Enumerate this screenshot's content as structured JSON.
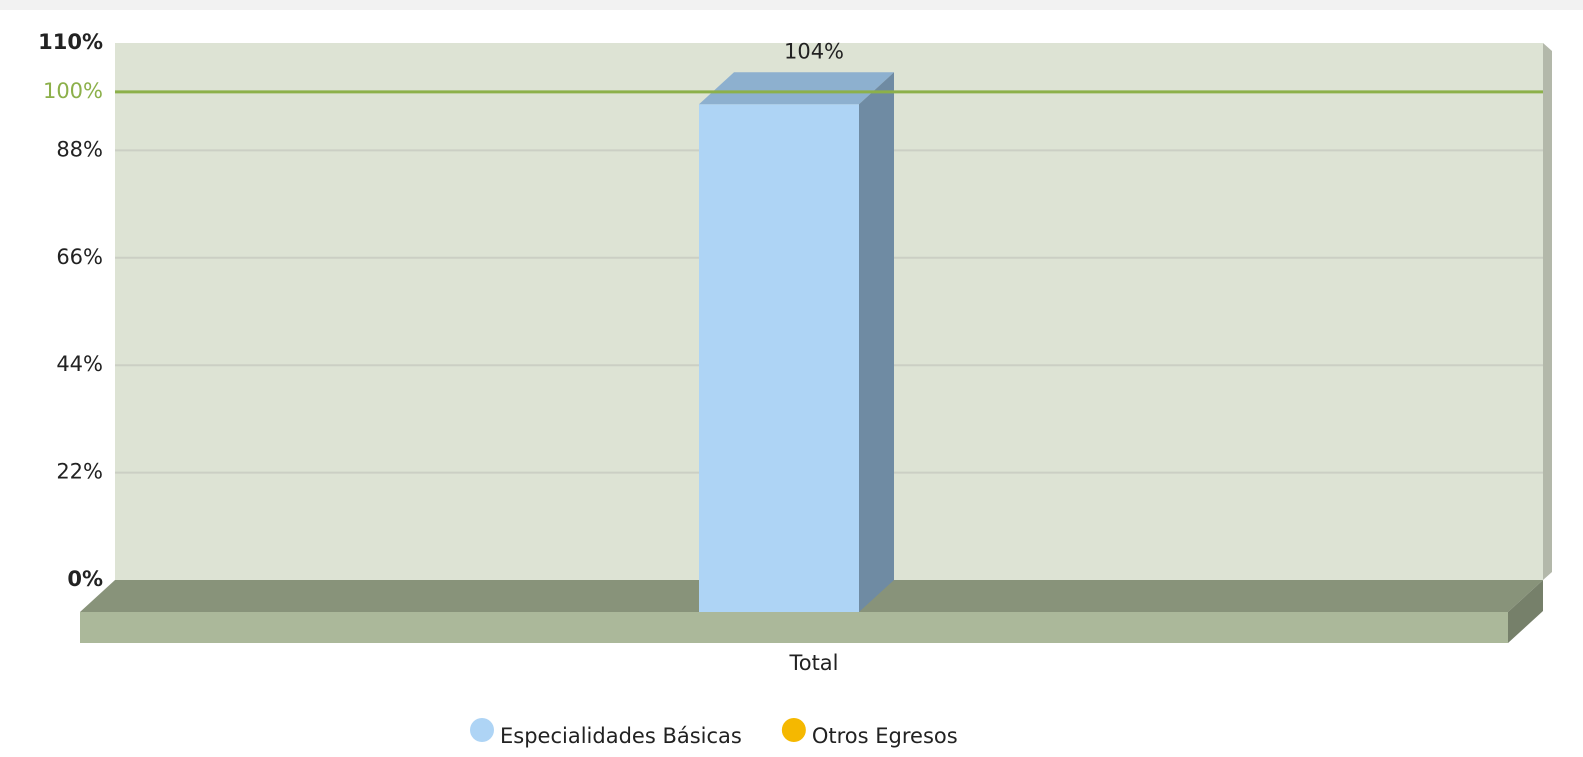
{
  "chart_data": {
    "type": "bar3d",
    "categories": [
      "Total"
    ],
    "series": [
      {
        "name": "Especialidades Básicas",
        "color": "#aed4f5",
        "values": [
          104
        ],
        "value_labels": [
          "104%"
        ]
      },
      {
        "name": "Otros Egresos",
        "color": "#f5b800",
        "values": [
          null
        ]
      }
    ],
    "ylim": [
      0,
      110
    ],
    "yticks": [
      {
        "value": 0,
        "label": "0%"
      },
      {
        "value": 22,
        "label": "22%"
      },
      {
        "value": 44,
        "label": "44%"
      },
      {
        "value": 66,
        "label": "66%"
      },
      {
        "value": 88,
        "label": "88%"
      },
      {
        "value": 110,
        "label": "110%"
      }
    ],
    "trendlines": [
      {
        "value": 100,
        "label": "100%",
        "color": "#8cb04a"
      }
    ],
    "grid": true
  }
}
